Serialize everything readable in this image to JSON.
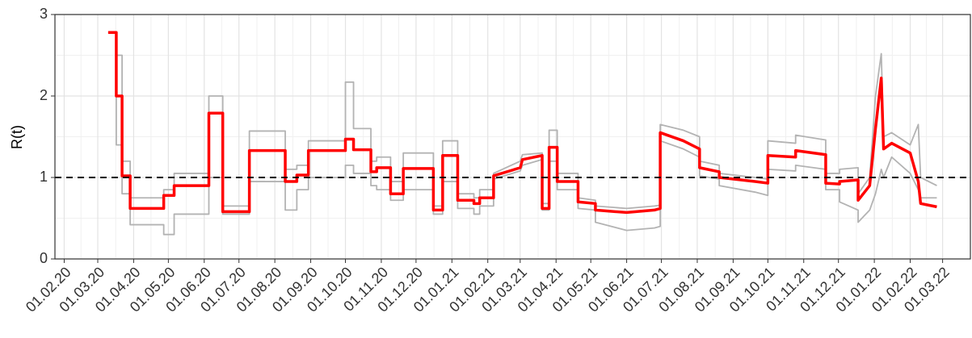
{
  "chart_data": {
    "type": "line",
    "ylabel": "R(t)",
    "x": [
      "2020-03-10",
      "2020-03-17",
      "2020-03-17",
      "2020-03-22",
      "2020-03-22",
      "2020-03-29",
      "2020-03-29",
      "2020-04-27",
      "2020-04-27",
      "2020-05-06",
      "2020-05-06",
      "2020-06-05",
      "2020-06-05",
      "2020-06-17",
      "2020-06-17",
      "2020-07-10",
      "2020-07-10",
      "2020-08-10",
      "2020-08-10",
      "2020-08-20",
      "2020-08-20",
      "2020-08-30",
      "2020-08-30",
      "2020-10-01",
      "2020-10-01",
      "2020-10-08",
      "2020-10-08",
      "2020-10-23",
      "2020-10-23",
      "2020-10-28",
      "2020-10-28",
      "2020-11-09",
      "2020-11-09",
      "2020-11-20",
      "2020-11-20",
      "2020-12-16",
      "2020-12-16",
      "2020-12-24",
      "2020-12-24",
      "2021-01-06",
      "2021-01-06",
      "2021-01-20",
      "2021-01-20",
      "2021-01-25",
      "2021-01-25",
      "2021-02-06",
      "2021-02-06",
      "2021-03-01",
      "2021-03-03",
      "2021-03-20",
      "2021-03-20",
      "2021-03-26",
      "2021-03-26",
      "2021-04-02",
      "2021-04-02",
      "2021-04-20",
      "2021-04-20",
      "2021-05-05",
      "2021-05-05",
      "2021-06-01",
      "2021-06-25",
      "2021-06-30",
      "2021-06-30",
      "2021-07-20",
      "2021-08-03",
      "2021-08-03",
      "2021-08-20",
      "2021-08-20",
      "2021-09-20",
      "2021-10-01",
      "2021-10-01",
      "2021-10-25",
      "2021-10-25",
      "2021-11-20",
      "2021-11-20",
      "2021-12-02",
      "2021-12-02",
      "2021-12-18",
      "2021-12-18",
      "2021-12-28",
      "2022-01-02",
      "2022-01-07",
      "2022-01-09",
      "2022-01-16",
      "2022-02-01",
      "2022-02-08",
      "2022-02-10",
      "2022-02-24"
    ],
    "series": [
      {
        "color": "#b3b3b3",
        "values": [
          2.78,
          2.78,
          2.5,
          2.5,
          1.2,
          1.2,
          0.75,
          0.75,
          0.85,
          0.85,
          1.05,
          1.05,
          2.0,
          2.0,
          0.65,
          0.65,
          1.57,
          1.57,
          1.1,
          1.1,
          1.15,
          1.15,
          1.45,
          1.45,
          2.17,
          2.17,
          1.6,
          1.6,
          1.2,
          1.2,
          1.25,
          1.25,
          0.95,
          0.95,
          1.3,
          1.3,
          0.65,
          0.65,
          1.45,
          1.45,
          0.8,
          0.8,
          0.75,
          0.75,
          0.85,
          0.85,
          1.05,
          1.2,
          1.28,
          1.3,
          0.68,
          0.68,
          1.58,
          1.58,
          1.05,
          1.05,
          0.75,
          0.72,
          0.65,
          0.62,
          0.65,
          0.66,
          1.65,
          1.58,
          1.5,
          1.2,
          1.15,
          1.05,
          1.0,
          0.98,
          1.45,
          1.42,
          1.52,
          1.46,
          1.05,
          1.05,
          1.1,
          1.12,
          0.8,
          1.0,
          2.0,
          2.52,
          1.5,
          1.55,
          1.4,
          1.65,
          1.0,
          0.9
        ]
      },
      {
        "color": "#b3b3b3",
        "values": [
          2.78,
          2.78,
          1.4,
          1.4,
          0.8,
          0.8,
          0.42,
          0.42,
          0.3,
          0.3,
          0.55,
          0.55,
          1.0,
          1.0,
          0.55,
          0.55,
          0.95,
          0.95,
          0.6,
          0.6,
          0.85,
          0.85,
          1.0,
          1.0,
          1.15,
          1.15,
          1.05,
          1.05,
          0.9,
          0.9,
          0.85,
          0.85,
          0.72,
          0.72,
          0.85,
          0.85,
          0.55,
          0.55,
          0.95,
          0.95,
          0.62,
          0.62,
          0.55,
          0.55,
          0.65,
          0.65,
          0.98,
          1.08,
          1.15,
          1.22,
          0.6,
          0.6,
          1.2,
          1.2,
          0.85,
          0.85,
          0.62,
          0.6,
          0.45,
          0.35,
          0.38,
          0.4,
          1.45,
          1.35,
          1.25,
          1.02,
          0.98,
          0.9,
          0.82,
          0.78,
          1.1,
          1.08,
          1.15,
          1.1,
          0.85,
          0.85,
          0.7,
          0.6,
          0.45,
          0.6,
          0.8,
          1.1,
          1.0,
          1.25,
          1.05,
          0.85,
          0.75,
          0.75
        ]
      },
      {
        "color": "#ff0000",
        "values": [
          2.78,
          2.78,
          2.0,
          2.0,
          1.02,
          1.02,
          0.62,
          0.62,
          0.78,
          0.78,
          0.9,
          0.9,
          1.79,
          1.79,
          0.58,
          0.58,
          1.33,
          1.33,
          0.95,
          0.95,
          1.03,
          1.03,
          1.33,
          1.33,
          1.47,
          1.47,
          1.34,
          1.34,
          1.07,
          1.07,
          1.12,
          1.12,
          0.8,
          0.8,
          1.11,
          1.11,
          0.6,
          0.6,
          1.27,
          1.27,
          0.72,
          0.72,
          0.68,
          0.68,
          0.75,
          0.75,
          1.02,
          1.12,
          1.22,
          1.27,
          0.62,
          0.62,
          1.37,
          1.37,
          0.95,
          0.95,
          0.7,
          0.68,
          0.6,
          0.57,
          0.6,
          0.62,
          1.55,
          1.45,
          1.35,
          1.12,
          1.07,
          1.0,
          0.95,
          0.93,
          1.27,
          1.25,
          1.33,
          1.28,
          0.93,
          0.92,
          0.95,
          0.97,
          0.72,
          0.9,
          1.6,
          2.22,
          1.35,
          1.42,
          1.3,
          0.95,
          0.68,
          0.64
        ]
      }
    ],
    "hline": 1,
    "xlim": [
      "2020-01-24",
      "2022-03-25"
    ],
    "xticks": [
      {
        "value": "2020-02-01",
        "label": "01.02.20"
      },
      {
        "value": "2020-03-01",
        "label": "01.03.20"
      },
      {
        "value": "2020-04-01",
        "label": "01.04.20"
      },
      {
        "value": "2020-05-01",
        "label": "01.05.20"
      },
      {
        "value": "2020-06-01",
        "label": "01.06.20"
      },
      {
        "value": "2020-07-01",
        "label": "01.07.20"
      },
      {
        "value": "2020-08-01",
        "label": "01.08.20"
      },
      {
        "value": "2020-09-01",
        "label": "01.09.20"
      },
      {
        "value": "2020-10-01",
        "label": "01.10.20"
      },
      {
        "value": "2020-11-01",
        "label": "01.11.20"
      },
      {
        "value": "2020-12-01",
        "label": "01.12.20"
      },
      {
        "value": "2021-01-01",
        "label": "01.01.21"
      },
      {
        "value": "2021-02-01",
        "label": "01.02.21"
      },
      {
        "value": "2021-03-01",
        "label": "01.03.21"
      },
      {
        "value": "2021-04-01",
        "label": "01.04.21"
      },
      {
        "value": "2021-05-01",
        "label": "01.05.21"
      },
      {
        "value": "2021-06-01",
        "label": "01.06.21"
      },
      {
        "value": "2021-07-01",
        "label": "01.07.21"
      },
      {
        "value": "2021-08-01",
        "label": "01.08.21"
      },
      {
        "value": "2021-09-01",
        "label": "01.09.21"
      },
      {
        "value": "2021-10-01",
        "label": "01.10.21"
      },
      {
        "value": "2021-11-01",
        "label": "01.11.21"
      },
      {
        "value": "2021-12-01",
        "label": "01.12.21"
      },
      {
        "value": "2022-01-01",
        "label": "01.01.22"
      },
      {
        "value": "2022-02-01",
        "label": "01.02.22"
      },
      {
        "value": "2022-03-01",
        "label": "01.03.22"
      }
    ],
    "ylim": [
      0,
      3
    ],
    "yticks": [
      0,
      1,
      2,
      3
    ],
    "grid": true
  }
}
